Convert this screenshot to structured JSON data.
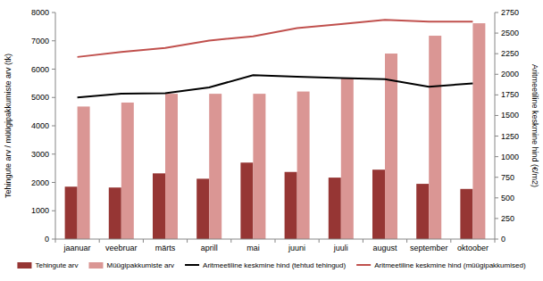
{
  "chart_data": {
    "type": "bar",
    "categories": [
      "jaanuar",
      "veebruar",
      "märts",
      "aprill",
      "mai",
      "juuni",
      "juuli",
      "august",
      "september",
      "oktoober"
    ],
    "y_label": "Tehingute arv / müügipakkumiste arv (tk)",
    "y2_label": "Aritmeetiline keskmine hind (€/m2)",
    "ylim": [
      0,
      8000
    ],
    "yticks": [
      0,
      1000,
      2000,
      3000,
      4000,
      5000,
      6000,
      7000,
      8000
    ],
    "y2lim": [
      0,
      2750
    ],
    "y2ticks": [
      0,
      250,
      500,
      750,
      1000,
      1250,
      1500,
      1750,
      2000,
      2250,
      2500,
      2750
    ],
    "grid": false,
    "legend": "bottom",
    "series": [
      {
        "name": "Tehingute arv",
        "type": "bar",
        "color": "#963634",
        "values": [
          1850,
          1820,
          2320,
          2130,
          2700,
          2370,
          2170,
          2450,
          1950,
          1770
        ]
      },
      {
        "name": "Müügipakkumiste arv",
        "type": "bar",
        "color": "#da9694",
        "values": [
          4680,
          4820,
          5130,
          5130,
          5130,
          5210,
          5700,
          6550,
          7180,
          7620
        ]
      },
      {
        "name": "Aritmeetiline keskmine hind (tehtud tehingud)",
        "type": "line",
        "axis": "y2",
        "color": "#000000",
        "values": [
          1720,
          1765,
          1770,
          1840,
          1990,
          1970,
          1955,
          1940,
          1850,
          1890
        ]
      },
      {
        "name": "Aritmeetiline keskmine hind (müügipakkumised)",
        "type": "line",
        "axis": "y2",
        "color": "#c0504d",
        "values": [
          2210,
          2270,
          2320,
          2410,
          2460,
          2560,
          2610,
          2660,
          2640,
          2640
        ]
      }
    ]
  }
}
